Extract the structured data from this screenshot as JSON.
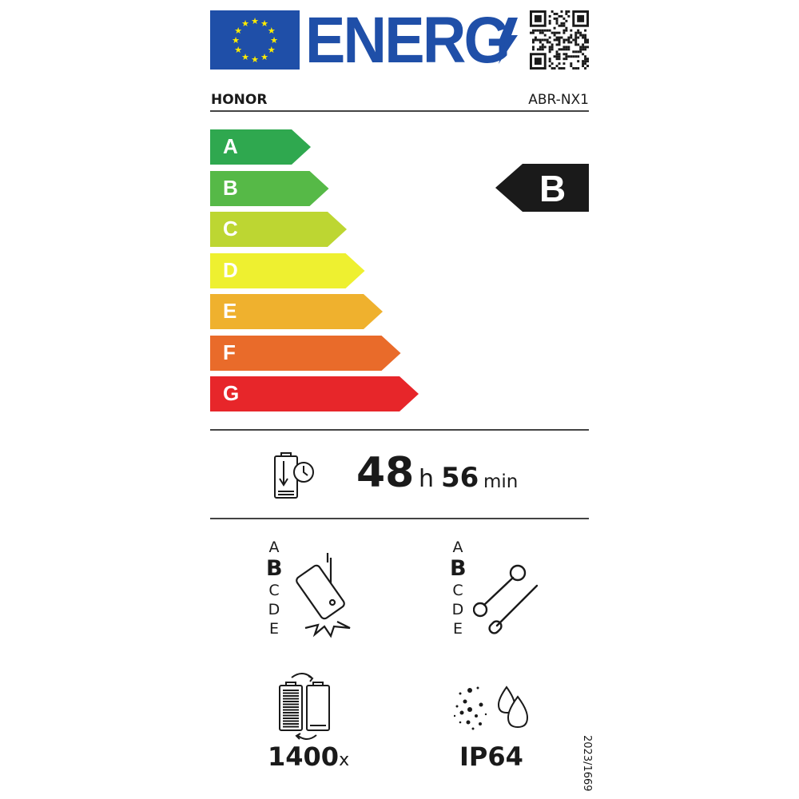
{
  "header": {
    "logo_text": "ENERG",
    "brand": "HONOR",
    "model": "ABR-NX1",
    "icons": [
      "eu-flag-icon",
      "lightning-bolt-icon",
      "qr-code-icon"
    ]
  },
  "scale": {
    "classes": [
      {
        "label": "A",
        "color": "#2fa84f"
      },
      {
        "label": "B",
        "color": "#56b947"
      },
      {
        "label": "C",
        "color": "#bdd632"
      },
      {
        "label": "D",
        "color": "#eef030"
      },
      {
        "label": "E",
        "color": "#efb12e"
      },
      {
        "label": "F",
        "color": "#e96b2a"
      },
      {
        "label": "G",
        "color": "#e7262a"
      }
    ],
    "rating": "B"
  },
  "battery_endurance": {
    "hours": "48",
    "hours_unit": "h",
    "minutes": "56",
    "minutes_unit": "min",
    "icon": "battery-clock-icon"
  },
  "drop_resistance": {
    "scale": [
      "A",
      "B",
      "C",
      "D",
      "E"
    ],
    "selected": "B",
    "icon": "falling-phone-icon"
  },
  "repairability": {
    "scale": [
      "A",
      "B",
      "C",
      "D",
      "E"
    ],
    "selected": "B",
    "icon": "wrench-screwdriver-icon"
  },
  "battery_cycles": {
    "value": "1400",
    "unit": "x",
    "icon": "battery-cycle-icon"
  },
  "ingress": {
    "value": "IP64",
    "icon": "dust-water-icon"
  },
  "regulation": "2023/1669"
}
